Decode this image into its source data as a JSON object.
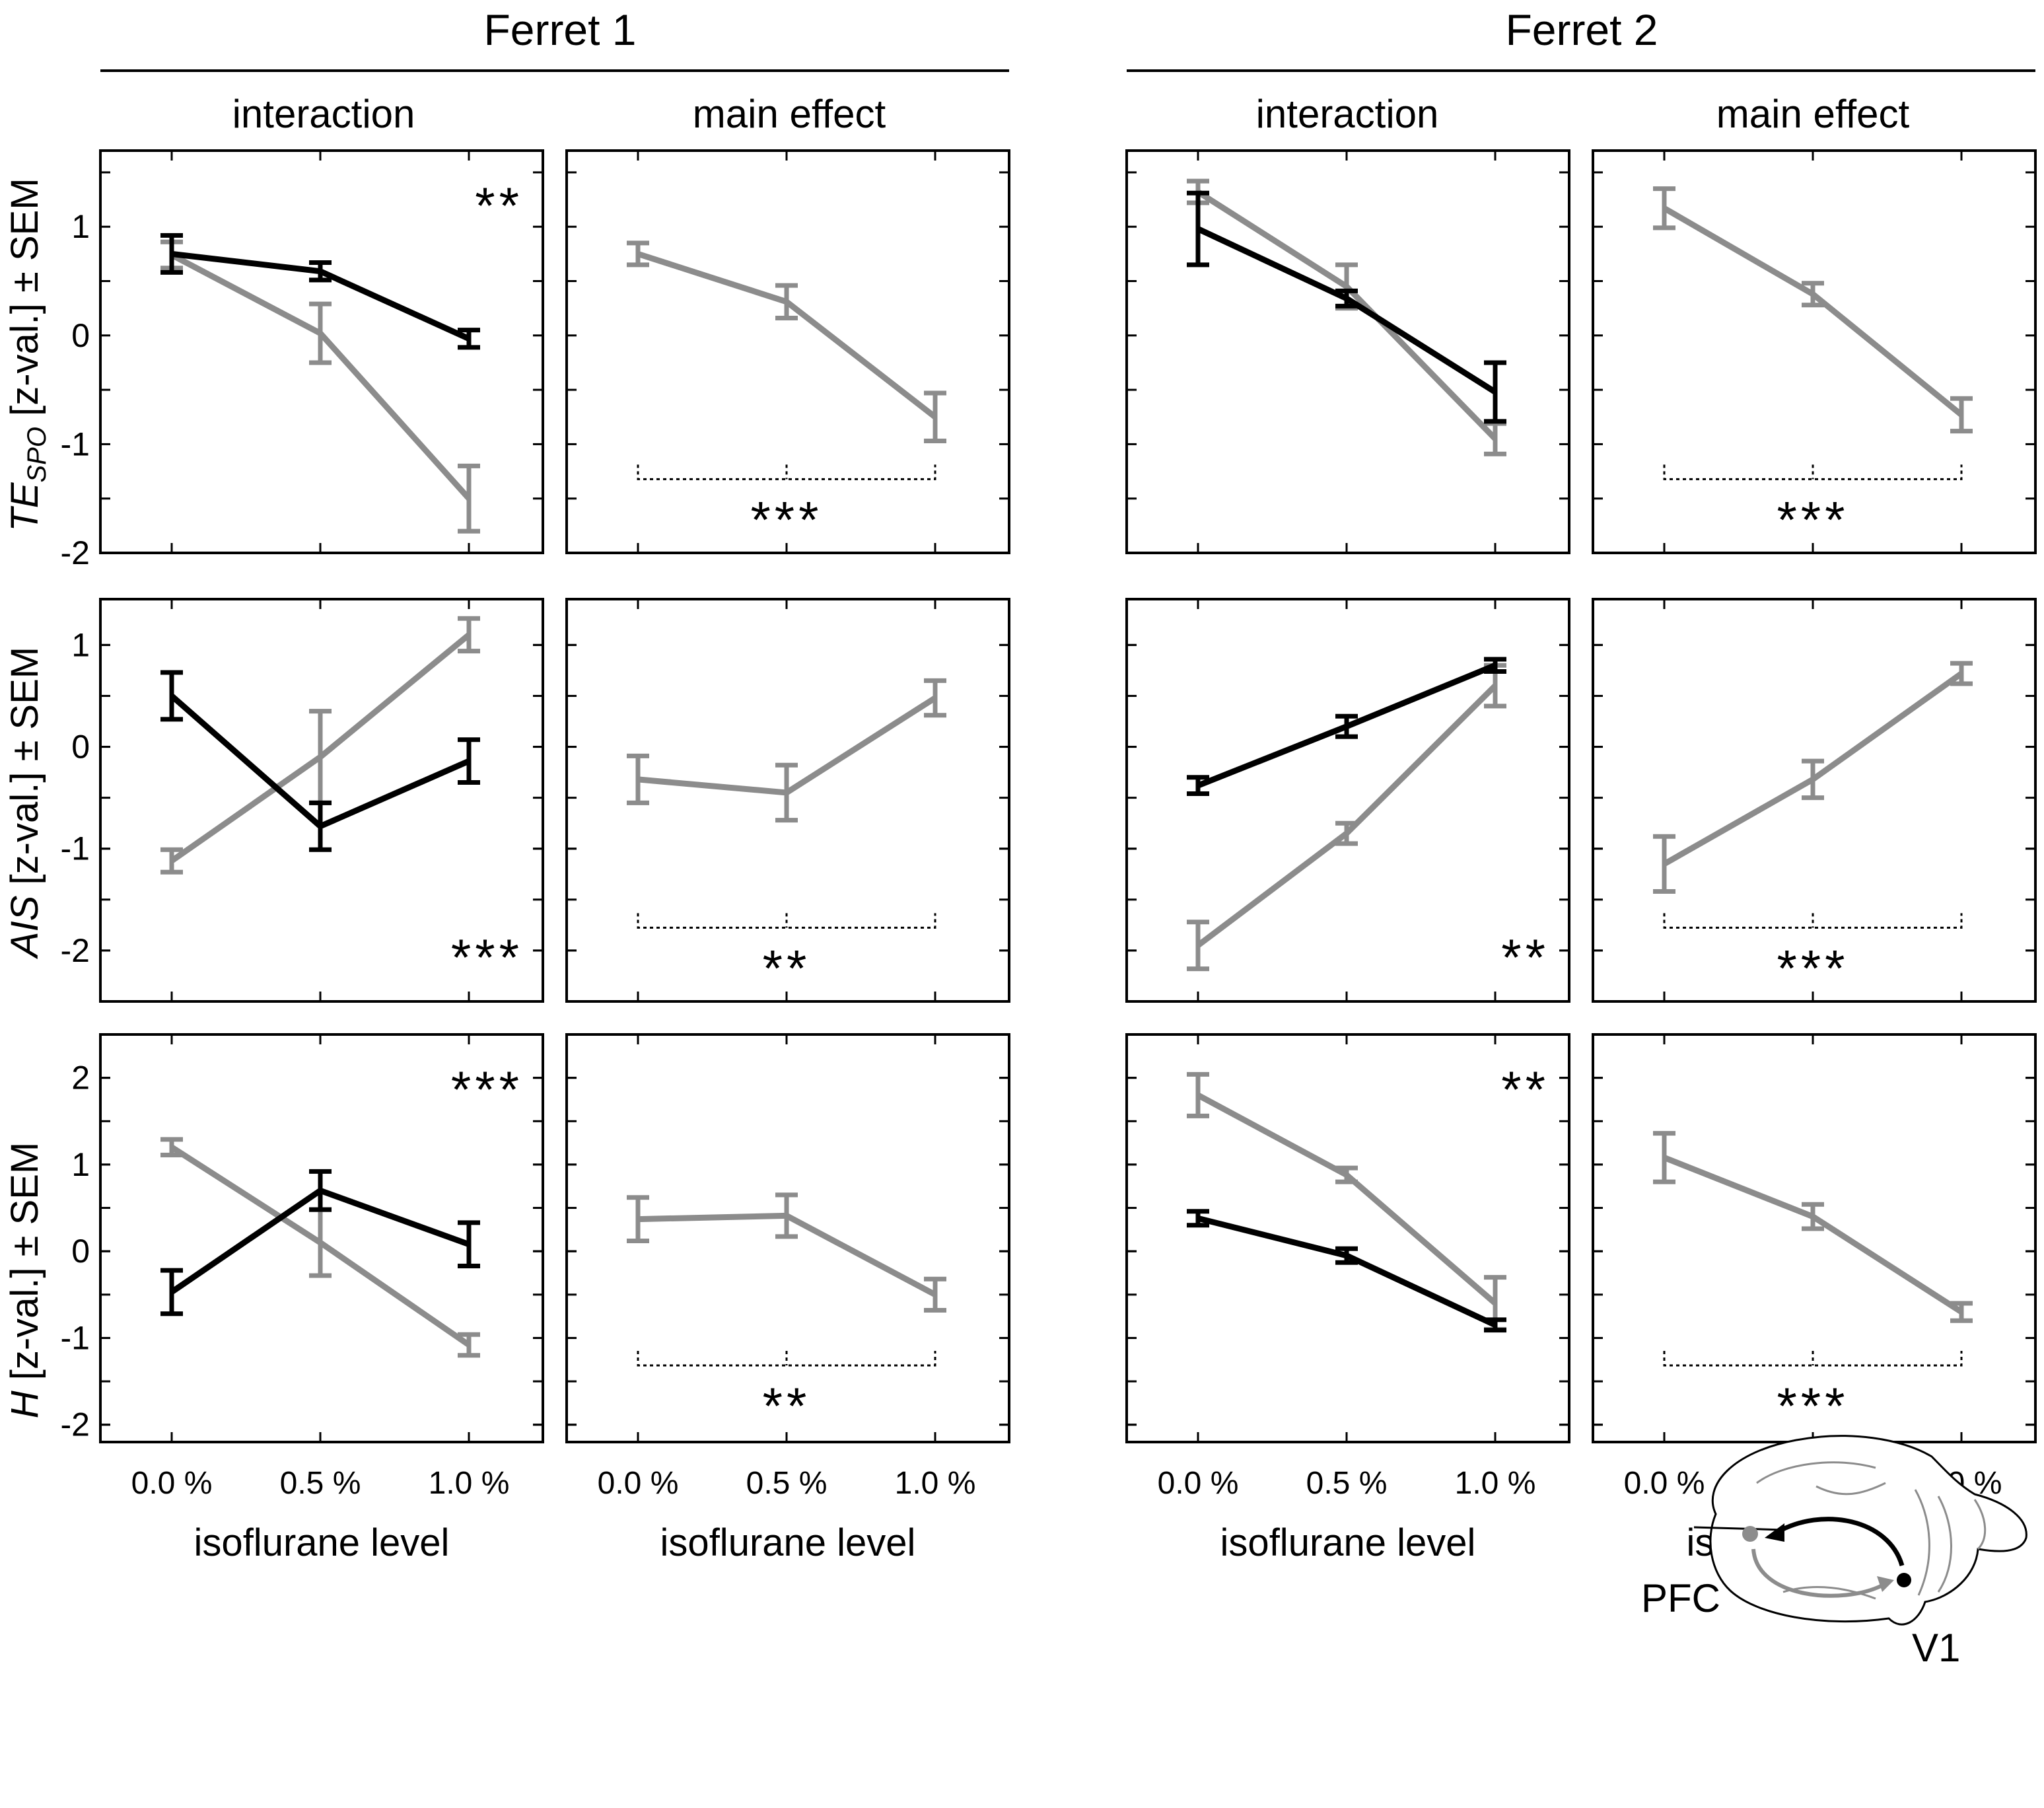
{
  "colors": {
    "cond_a": "#000000",
    "cond_b": "#8c8c8c"
  },
  "ferrets": [
    {
      "title": "Ferret 1"
    },
    {
      "title": "Ferret 2"
    }
  ],
  "column_headers": [
    "interaction",
    "main effect",
    "interaction",
    "main effect"
  ],
  "x_axis": {
    "label": "isoflurane level",
    "ticks": [
      "0.0 %",
      "0.5 %",
      "1.0 %"
    ]
  },
  "y_axis_labels": [
    {
      "main": "TE",
      "sub": "SPO",
      "rest": " [z-val.] ± SEM"
    },
    {
      "main": "AIS",
      "sub": "",
      "rest": " [z-val.] ± SEM"
    },
    {
      "main": "H",
      "sub": "",
      "rest": " [z-val.] ± SEM"
    }
  ],
  "y_ticks": [
    [
      "1",
      "0",
      "-1",
      "-2"
    ],
    [
      "1",
      "0",
      "-1",
      "-2"
    ],
    [
      "2",
      "1",
      "0",
      "-1",
      "-2"
    ]
  ],
  "stars": [
    [
      "**",
      "***",
      "",
      "***"
    ],
    [
      "***",
      "**",
      "**",
      "***"
    ],
    [
      "***",
      "**",
      "**",
      "***"
    ]
  ],
  "brain": {
    "label_pfc": "PFC",
    "label_v1": "V1",
    "icon": "ferret-brain-diagram"
  },
  "chart_data": [
    {
      "type": "line",
      "row": 0,
      "col": 0,
      "ferret": "Ferret 1",
      "panel": "interaction",
      "ylabel": "TE_SPO [z-val.] ± SEM",
      "ylim": [
        -2,
        1.7
      ],
      "x": [
        "0.0 %",
        "0.5 %",
        "1.0 %"
      ],
      "series": [
        {
          "name": "black",
          "values": [
            0.75,
            0.59,
            -0.03
          ],
          "sem": [
            0.17,
            0.08,
            0.08
          ]
        },
        {
          "name": "gray",
          "values": [
            0.74,
            0.02,
            -1.5
          ],
          "sem": [
            0.12,
            0.27,
            0.3
          ]
        }
      ]
    },
    {
      "type": "line",
      "row": 0,
      "col": 1,
      "ferret": "Ferret 1",
      "panel": "main effect",
      "ylabel": "TE_SPO [z-val.] ± SEM",
      "ylim": [
        -2,
        1.7
      ],
      "x": [
        "0.0 %",
        "0.5 %",
        "1.0 %"
      ],
      "series": [
        {
          "name": "gray",
          "values": [
            0.75,
            0.31,
            -0.75
          ],
          "sem": [
            0.1,
            0.15,
            0.22
          ]
        }
      ]
    },
    {
      "type": "line",
      "row": 0,
      "col": 2,
      "ferret": "Ferret 2",
      "panel": "interaction",
      "ylabel": "TE_SPO [z-val.] ± SEM",
      "ylim": [
        -2,
        1.7
      ],
      "x": [
        "0.0 %",
        "0.5 %",
        "1.0 %"
      ],
      "series": [
        {
          "name": "black",
          "values": [
            0.98,
            0.34,
            -0.52
          ],
          "sem": [
            0.33,
            0.07,
            0.27
          ]
        },
        {
          "name": "gray",
          "values": [
            1.32,
            0.45,
            -0.95
          ],
          "sem": [
            0.1,
            0.2,
            0.14
          ]
        }
      ]
    },
    {
      "type": "line",
      "row": 0,
      "col": 3,
      "ferret": "Ferret 2",
      "panel": "main effect",
      "ylabel": "TE_SPO [z-val.] ± SEM",
      "ylim": [
        -2,
        1.7
      ],
      "x": [
        "0.0 %",
        "0.5 %",
        "1.0 %"
      ],
      "series": [
        {
          "name": "gray",
          "values": [
            1.17,
            0.38,
            -0.73
          ],
          "sem": [
            0.18,
            0.1,
            0.15
          ]
        }
      ]
    },
    {
      "type": "line",
      "row": 1,
      "col": 0,
      "ferret": "Ferret 1",
      "panel": "interaction",
      "ylabel": "AIS [z-val.] ± SEM",
      "ylim": [
        -2.5,
        1.45
      ],
      "x": [
        "0.0 %",
        "0.5 %",
        "1.0 %"
      ],
      "series": [
        {
          "name": "black",
          "values": [
            0.5,
            -0.78,
            -0.14
          ],
          "sem": [
            0.23,
            0.23,
            0.21
          ]
        },
        {
          "name": "gray",
          "values": [
            -1.12,
            -0.1,
            1.1
          ],
          "sem": [
            0.11,
            0.45,
            0.16
          ]
        }
      ]
    },
    {
      "type": "line",
      "row": 1,
      "col": 1,
      "ferret": "Ferret 1",
      "panel": "main effect",
      "ylabel": "AIS [z-val.] ± SEM",
      "ylim": [
        -2.5,
        1.45
      ],
      "x": [
        "0.0 %",
        "0.5 %",
        "1.0 %"
      ],
      "series": [
        {
          "name": "gray",
          "values": [
            -0.32,
            -0.45,
            0.48
          ],
          "sem": [
            0.23,
            0.27,
            0.17
          ]
        }
      ]
    },
    {
      "type": "line",
      "row": 1,
      "col": 2,
      "ferret": "Ferret 2",
      "panel": "interaction",
      "ylabel": "AIS [z-val.] ± SEM",
      "ylim": [
        -2.5,
        1.45
      ],
      "x": [
        "0.0 %",
        "0.5 %",
        "1.0 %"
      ],
      "series": [
        {
          "name": "black",
          "values": [
            -0.38,
            0.2,
            0.8
          ],
          "sem": [
            0.08,
            0.1,
            0.06
          ]
        },
        {
          "name": "gray",
          "values": [
            -1.95,
            -0.85,
            0.6
          ],
          "sem": [
            0.23,
            0.1,
            0.2
          ]
        }
      ]
    },
    {
      "type": "line",
      "row": 1,
      "col": 3,
      "ferret": "Ferret 2",
      "panel": "main effect",
      "ylabel": "AIS [z-val.] ± SEM",
      "ylim": [
        -2.5,
        1.45
      ],
      "x": [
        "0.0 %",
        "0.5 %",
        "1.0 %"
      ],
      "series": [
        {
          "name": "gray",
          "values": [
            -1.15,
            -0.32,
            0.72
          ],
          "sem": [
            0.27,
            0.18,
            0.1
          ]
        }
      ]
    },
    {
      "type": "line",
      "row": 2,
      "col": 0,
      "ferret": "Ferret 1",
      "panel": "interaction",
      "ylabel": "H [z-val.] ± SEM",
      "ylim": [
        -2.2,
        2.5
      ],
      "x": [
        "0.0 %",
        "0.5 %",
        "1.0 %"
      ],
      "series": [
        {
          "name": "black",
          "values": [
            -0.47,
            0.7,
            0.08
          ],
          "sem": [
            0.25,
            0.22,
            0.25
          ]
        },
        {
          "name": "gray",
          "values": [
            1.2,
            0.1,
            -1.08
          ],
          "sem": [
            0.09,
            0.38,
            0.12
          ]
        }
      ]
    },
    {
      "type": "line",
      "row": 2,
      "col": 1,
      "ferret": "Ferret 1",
      "panel": "main effect",
      "ylabel": "H [z-val.] ± SEM",
      "ylim": [
        -2.2,
        2.5
      ],
      "x": [
        "0.0 %",
        "0.5 %",
        "1.0 %"
      ],
      "series": [
        {
          "name": "gray",
          "values": [
            0.37,
            0.41,
            -0.5
          ],
          "sem": [
            0.25,
            0.24,
            0.18
          ]
        }
      ]
    },
    {
      "type": "line",
      "row": 2,
      "col": 2,
      "ferret": "Ferret 2",
      "panel": "interaction",
      "ylabel": "H [z-val.] ± SEM",
      "ylim": [
        -2.2,
        2.5
      ],
      "x": [
        "0.0 %",
        "0.5 %",
        "1.0 %"
      ],
      "series": [
        {
          "name": "black",
          "values": [
            0.38,
            -0.05,
            -0.85
          ],
          "sem": [
            0.08,
            0.08,
            0.06
          ]
        },
        {
          "name": "gray",
          "values": [
            1.8,
            0.88,
            -0.6
          ],
          "sem": [
            0.24,
            0.08,
            0.3
          ]
        }
      ]
    },
    {
      "type": "line",
      "row": 2,
      "col": 3,
      "ferret": "Ferret 2",
      "panel": "main effect",
      "ylabel": "H [z-val.] ± SEM",
      "ylim": [
        -2.2,
        2.5
      ],
      "x": [
        "0.0 %",
        "0.5 %",
        "1.0 %"
      ],
      "series": [
        {
          "name": "gray",
          "values": [
            1.08,
            0.4,
            -0.7
          ],
          "sem": [
            0.28,
            0.14,
            0.1
          ]
        }
      ]
    }
  ]
}
